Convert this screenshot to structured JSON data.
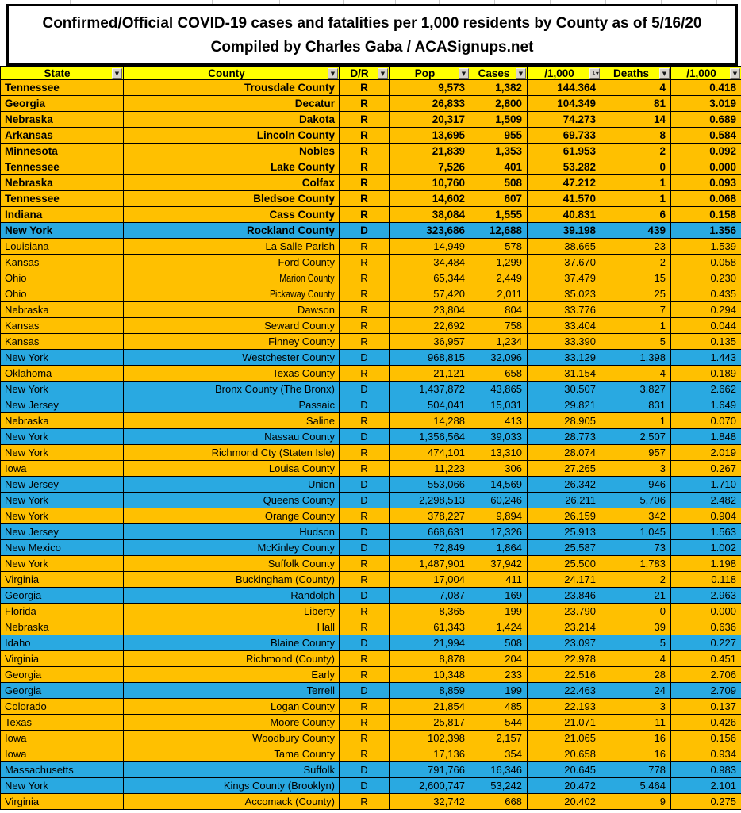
{
  "title": {
    "line1": "Confirmed/Official COVID-19 cases and fatalities per 1,000 residents by County as of 5/16/20",
    "line2": "Compiled by Charles Gaba / ACASignups.net"
  },
  "colors": {
    "republican_row": "#ffc000",
    "democrat_row": "#29a9e1",
    "header_bg": "#ffff00"
  },
  "columns": [
    {
      "label": "State",
      "filter_icon": "filter-dropdown-icon",
      "sorted": false
    },
    {
      "label": "County",
      "filter_icon": "filter-dropdown-icon",
      "sorted": false
    },
    {
      "label": "D/R",
      "filter_icon": "filter-dropdown-icon",
      "sorted": false
    },
    {
      "label": "Pop",
      "filter_icon": "filter-dropdown-icon",
      "sorted": false
    },
    {
      "label": "Cases",
      "filter_icon": "filter-dropdown-icon",
      "sorted": false
    },
    {
      "label": "/1,000",
      "filter_icon": "sort-descending-filter-icon",
      "sorted": true
    },
    {
      "label": "Deaths",
      "filter_icon": "filter-dropdown-icon",
      "sorted": false
    },
    {
      "label": "/1,000",
      "filter_icon": "filter-dropdown-icon",
      "sorted": false
    }
  ],
  "rows": [
    {
      "cells": [
        "Tennessee",
        "Trousdale County",
        "R",
        "9,573",
        "1,382",
        "144.364",
        "4",
        "0.418"
      ],
      "bold": true
    },
    {
      "cells": [
        "Georgia",
        "Decatur",
        "R",
        "26,833",
        "2,800",
        "104.349",
        "81",
        "3.019"
      ],
      "bold": true
    },
    {
      "cells": [
        "Nebraska",
        "Dakota",
        "R",
        "20,317",
        "1,509",
        "74.273",
        "14",
        "0.689"
      ],
      "bold": true
    },
    {
      "cells": [
        "Arkansas",
        "Lincoln County",
        "R",
        "13,695",
        "955",
        "69.733",
        "8",
        "0.584"
      ],
      "bold": true
    },
    {
      "cells": [
        "Minnesota",
        "Nobles",
        "R",
        "21,839",
        "1,353",
        "61.953",
        "2",
        "0.092"
      ],
      "bold": true
    },
    {
      "cells": [
        "Tennessee",
        "Lake County",
        "R",
        "7,526",
        "401",
        "53.282",
        "0",
        "0.000"
      ],
      "bold": true
    },
    {
      "cells": [
        "Nebraska",
        "Colfax",
        "R",
        "10,760",
        "508",
        "47.212",
        "1",
        "0.093"
      ],
      "bold": true
    },
    {
      "cells": [
        "Tennessee",
        "Bledsoe County",
        "R",
        "14,602",
        "607",
        "41.570",
        "1",
        "0.068"
      ],
      "bold": true
    },
    {
      "cells": [
        "Indiana",
        "Cass County",
        "R",
        "38,084",
        "1,555",
        "40.831",
        "6",
        "0.158"
      ],
      "bold": true
    },
    {
      "cells": [
        "New York",
        "Rockland County",
        "D",
        "323,686",
        "12,688",
        "39.198",
        "439",
        "1.356"
      ],
      "bold": true
    },
    {
      "cells": [
        "Louisiana",
        "La Salle Parish",
        "R",
        "14,949",
        "578",
        "38.665",
        "23",
        "1.539"
      ]
    },
    {
      "cells": [
        "Kansas",
        "Ford County",
        "R",
        "34,484",
        "1,299",
        "37.670",
        "2",
        "0.058"
      ]
    },
    {
      "cells": [
        "Ohio",
        "Marion County",
        "R",
        "65,344",
        "2,449",
        "37.479",
        "15",
        "0.230"
      ],
      "narrow": true
    },
    {
      "cells": [
        "Ohio",
        "Pickaway County",
        "R",
        "57,420",
        "2,011",
        "35.023",
        "25",
        "0.435"
      ],
      "narrow": true
    },
    {
      "cells": [
        "Nebraska",
        "Dawson",
        "R",
        "23,804",
        "804",
        "33.776",
        "7",
        "0.294"
      ]
    },
    {
      "cells": [
        "Kansas",
        "Seward County",
        "R",
        "22,692",
        "758",
        "33.404",
        "1",
        "0.044"
      ]
    },
    {
      "cells": [
        "Kansas",
        "Finney County",
        "R",
        "36,957",
        "1,234",
        "33.390",
        "5",
        "0.135"
      ]
    },
    {
      "cells": [
        "New York",
        "Westchester County",
        "D",
        "968,815",
        "32,096",
        "33.129",
        "1,398",
        "1.443"
      ]
    },
    {
      "cells": [
        "Oklahoma",
        "Texas County",
        "R",
        "21,121",
        "658",
        "31.154",
        "4",
        "0.189"
      ]
    },
    {
      "cells": [
        "New York",
        "Bronx County (The Bronx)",
        "D",
        "1,437,872",
        "43,865",
        "30.507",
        "3,827",
        "2.662"
      ]
    },
    {
      "cells": [
        "New Jersey",
        "Passaic",
        "D",
        "504,041",
        "15,031",
        "29.821",
        "831",
        "1.649"
      ]
    },
    {
      "cells": [
        "Nebraska",
        "Saline",
        "R",
        "14,288",
        "413",
        "28.905",
        "1",
        "0.070"
      ]
    },
    {
      "cells": [
        "New York",
        "Nassau County",
        "D",
        "1,356,564",
        "39,033",
        "28.773",
        "2,507",
        "1.848"
      ]
    },
    {
      "cells": [
        "New York",
        "Richmond Cty (Staten Isle)",
        "R",
        "474,101",
        "13,310",
        "28.074",
        "957",
        "2.019"
      ]
    },
    {
      "cells": [
        "Iowa",
        "Louisa County",
        "R",
        "11,223",
        "306",
        "27.265",
        "3",
        "0.267"
      ]
    },
    {
      "cells": [
        "New Jersey",
        "Union",
        "D",
        "553,066",
        "14,569",
        "26.342",
        "946",
        "1.710"
      ]
    },
    {
      "cells": [
        "New York",
        "Queens County",
        "D",
        "2,298,513",
        "60,246",
        "26.211",
        "5,706",
        "2.482"
      ]
    },
    {
      "cells": [
        "New York",
        "Orange County",
        "R",
        "378,227",
        "9,894",
        "26.159",
        "342",
        "0.904"
      ]
    },
    {
      "cells": [
        "New Jersey",
        "Hudson",
        "D",
        "668,631",
        "17,326",
        "25.913",
        "1,045",
        "1.563"
      ]
    },
    {
      "cells": [
        "New Mexico",
        "McKinley County",
        "D",
        "72,849",
        "1,864",
        "25.587",
        "73",
        "1.002"
      ]
    },
    {
      "cells": [
        "New York",
        "Suffolk County",
        "R",
        "1,487,901",
        "37,942",
        "25.500",
        "1,783",
        "1.198"
      ]
    },
    {
      "cells": [
        "Virginia",
        "Buckingham (County)",
        "R",
        "17,004",
        "411",
        "24.171",
        "2",
        "0.118"
      ]
    },
    {
      "cells": [
        "Georgia",
        "Randolph",
        "D",
        "7,087",
        "169",
        "23.846",
        "21",
        "2.963"
      ]
    },
    {
      "cells": [
        "Florida",
        "Liberty",
        "R",
        "8,365",
        "199",
        "23.790",
        "0",
        "0.000"
      ]
    },
    {
      "cells": [
        "Nebraska",
        "Hall",
        "R",
        "61,343",
        "1,424",
        "23.214",
        "39",
        "0.636"
      ]
    },
    {
      "cells": [
        "Idaho",
        "Blaine County",
        "D",
        "21,994",
        "508",
        "23.097",
        "5",
        "0.227"
      ]
    },
    {
      "cells": [
        "Virginia",
        "Richmond (County)",
        "R",
        "8,878",
        "204",
        "22.978",
        "4",
        "0.451"
      ]
    },
    {
      "cells": [
        "Georgia",
        "Early",
        "R",
        "10,348",
        "233",
        "22.516",
        "28",
        "2.706"
      ]
    },
    {
      "cells": [
        "Georgia",
        "Terrell",
        "D",
        "8,859",
        "199",
        "22.463",
        "24",
        "2.709"
      ]
    },
    {
      "cells": [
        "Colorado",
        "Logan County",
        "R",
        "21,854",
        "485",
        "22.193",
        "3",
        "0.137"
      ]
    },
    {
      "cells": [
        "Texas",
        "Moore County",
        "R",
        "25,817",
        "544",
        "21.071",
        "11",
        "0.426"
      ]
    },
    {
      "cells": [
        "Iowa",
        "Woodbury County",
        "R",
        "102,398",
        "2,157",
        "21.065",
        "16",
        "0.156"
      ]
    },
    {
      "cells": [
        "Iowa",
        "Tama County",
        "R",
        "17,136",
        "354",
        "20.658",
        "16",
        "0.934"
      ]
    },
    {
      "cells": [
        "Massachusetts",
        "Suffolk",
        "D",
        "791,766",
        "16,346",
        "20.645",
        "778",
        "0.983"
      ]
    },
    {
      "cells": [
        "New York",
        "Kings County (Brooklyn)",
        "D",
        "2,600,747",
        "53,242",
        "20.472",
        "5,464",
        "2.101"
      ]
    },
    {
      "cells": [
        "Virginia",
        "Accomack (County)",
        "R",
        "32,742",
        "668",
        "20.402",
        "9",
        "0.275"
      ]
    }
  ]
}
